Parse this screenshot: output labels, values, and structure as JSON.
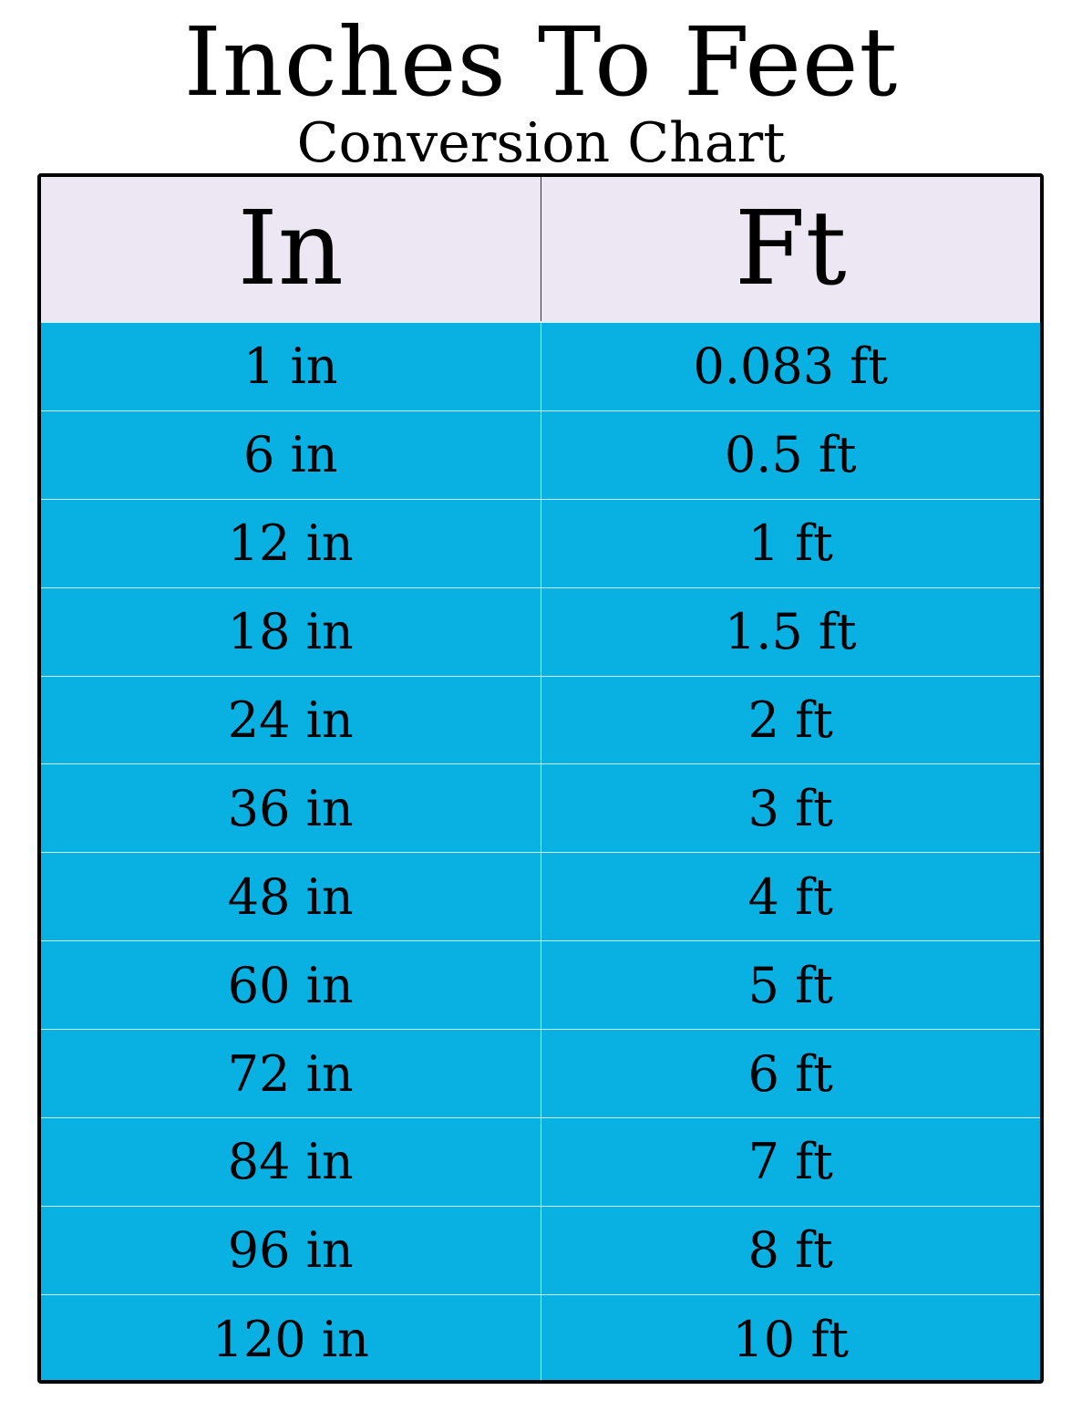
{
  "title": "Inches To Feet",
  "subtitle": "Conversion Chart",
  "colors": {
    "header_bg": "#ede7f3",
    "row_bg": "#08b1e2",
    "border": "#000000"
  },
  "chart_data": {
    "type": "table",
    "title": "Inches To Feet",
    "subtitle": "Conversion Chart",
    "columns": [
      "In",
      "Ft"
    ],
    "rows": [
      [
        "1 in",
        "0.083 ft"
      ],
      [
        "6 in",
        "0.5 ft"
      ],
      [
        "12 in",
        "1 ft"
      ],
      [
        "18 in",
        "1.5 ft"
      ],
      [
        "24 in",
        "2 ft"
      ],
      [
        "36 in",
        "3 ft"
      ],
      [
        "48 in",
        "4 ft"
      ],
      [
        "60 in",
        "5 ft"
      ],
      [
        "72 in",
        "6 ft"
      ],
      [
        "84 in",
        "7 ft"
      ],
      [
        "96 in",
        "8 ft"
      ],
      [
        "120 in",
        "10 ft"
      ]
    ]
  }
}
